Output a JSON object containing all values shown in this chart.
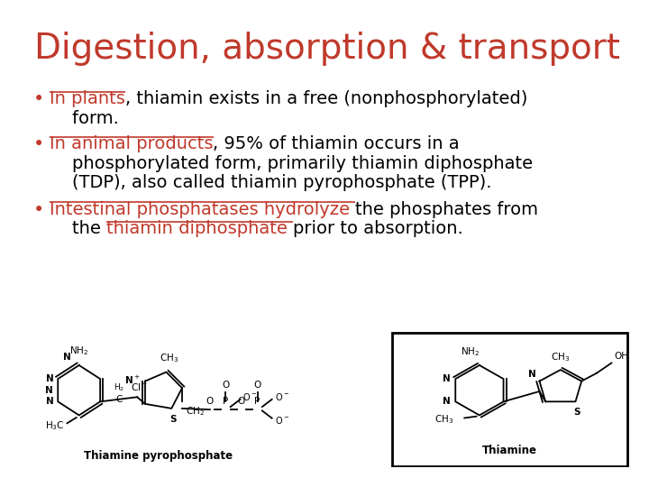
{
  "title": "Digestion, absorption & transport",
  "title_color": "#C0392B",
  "title_fontsize": 28,
  "background_color": "#FFFFFF",
  "bullet_color": "#C0392B",
  "text_color": "#000000",
  "underline_color": "#C0392B",
  "bullet_fontsize": 14,
  "figsize": [
    7.2,
    5.4
  ],
  "dpi": 100,
  "bullet1_line1_parts": [
    {
      "text": "In plants",
      "ul": true,
      "color": "#C0392B"
    },
    {
      "text": ", thiamin exists in a free (nonphosphorylated)",
      "ul": false,
      "color": "#000000"
    }
  ],
  "bullet1_line2": "    form.",
  "bullet2_line1_parts": [
    {
      "text": "In animal products",
      "ul": true,
      "color": "#C0392B"
    },
    {
      "text": ", 95% of thiamin occurs in a",
      "ul": false,
      "color": "#000000"
    }
  ],
  "bullet2_line2": "    phosphorylated form, primarily thiamin diphosphate",
  "bullet2_line3": "    (TDP), also called thiamin pyrophosphate (TPP).",
  "bullet3_line1_parts": [
    {
      "text": "Intestinal phosphatases hydrolyze ",
      "ul": true,
      "color": "#C0392B"
    },
    {
      "text": "the phosphates from",
      "ul": false,
      "color": "#000000"
    }
  ],
  "bullet3_line2_parts": [
    {
      "text": "    the ",
      "ul": false,
      "color": "#000000"
    },
    {
      "text": "thiamin diphosphate ",
      "ul": true,
      "color": "#C0392B"
    },
    {
      "text": "prior to absorption.",
      "ul": false,
      "color": "#000000"
    }
  ],
  "img1_label": "Thiamine pyrophosphate",
  "img2_label": "Thiamine"
}
